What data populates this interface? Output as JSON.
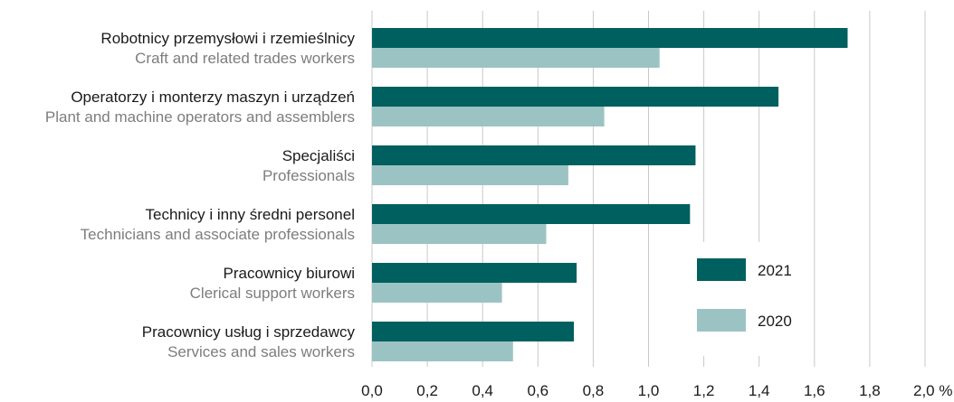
{
  "chart_data": {
    "type": "bar",
    "orientation": "horizontal",
    "categories": [
      {
        "pl": "Robotnicy przemysłowi i rzemieślnicy",
        "en": "Craft and related trades workers"
      },
      {
        "pl": "Operatorzy i monterzy maszyn i urządzeń",
        "en": "Plant and machine operators and assemblers"
      },
      {
        "pl": "Specjaliści",
        "en": "Professionals"
      },
      {
        "pl": "Technicy i inny średni personel",
        "en": "Technicians and associate professionals"
      },
      {
        "pl": "Pracownicy biurowi",
        "en": "Clerical support workers"
      },
      {
        "pl": "Pracownicy usług i sprzedawcy",
        "en": "Services and sales workers"
      }
    ],
    "series": [
      {
        "name": "2021",
        "color": "#005f5f",
        "values": [
          1.72,
          1.47,
          1.17,
          1.15,
          0.74,
          0.73
        ]
      },
      {
        "name": "2020",
        "color": "#9cc3c3",
        "values": [
          1.04,
          0.84,
          0.71,
          0.63,
          0.47,
          0.51
        ]
      }
    ],
    "xlim": [
      0,
      2.0
    ],
    "xticks": [
      0,
      0.2,
      0.4,
      0.6,
      0.8,
      1.0,
      1.2,
      1.4,
      1.6,
      1.8,
      2.0
    ],
    "xtick_labels": [
      "0,0",
      "0,2",
      "0,4",
      "0,6",
      "0,8",
      "1,0",
      "1,2",
      "1,4",
      "1,6",
      "1,8",
      "2,0 %"
    ],
    "grid": true,
    "legend_position": "lower-right"
  }
}
